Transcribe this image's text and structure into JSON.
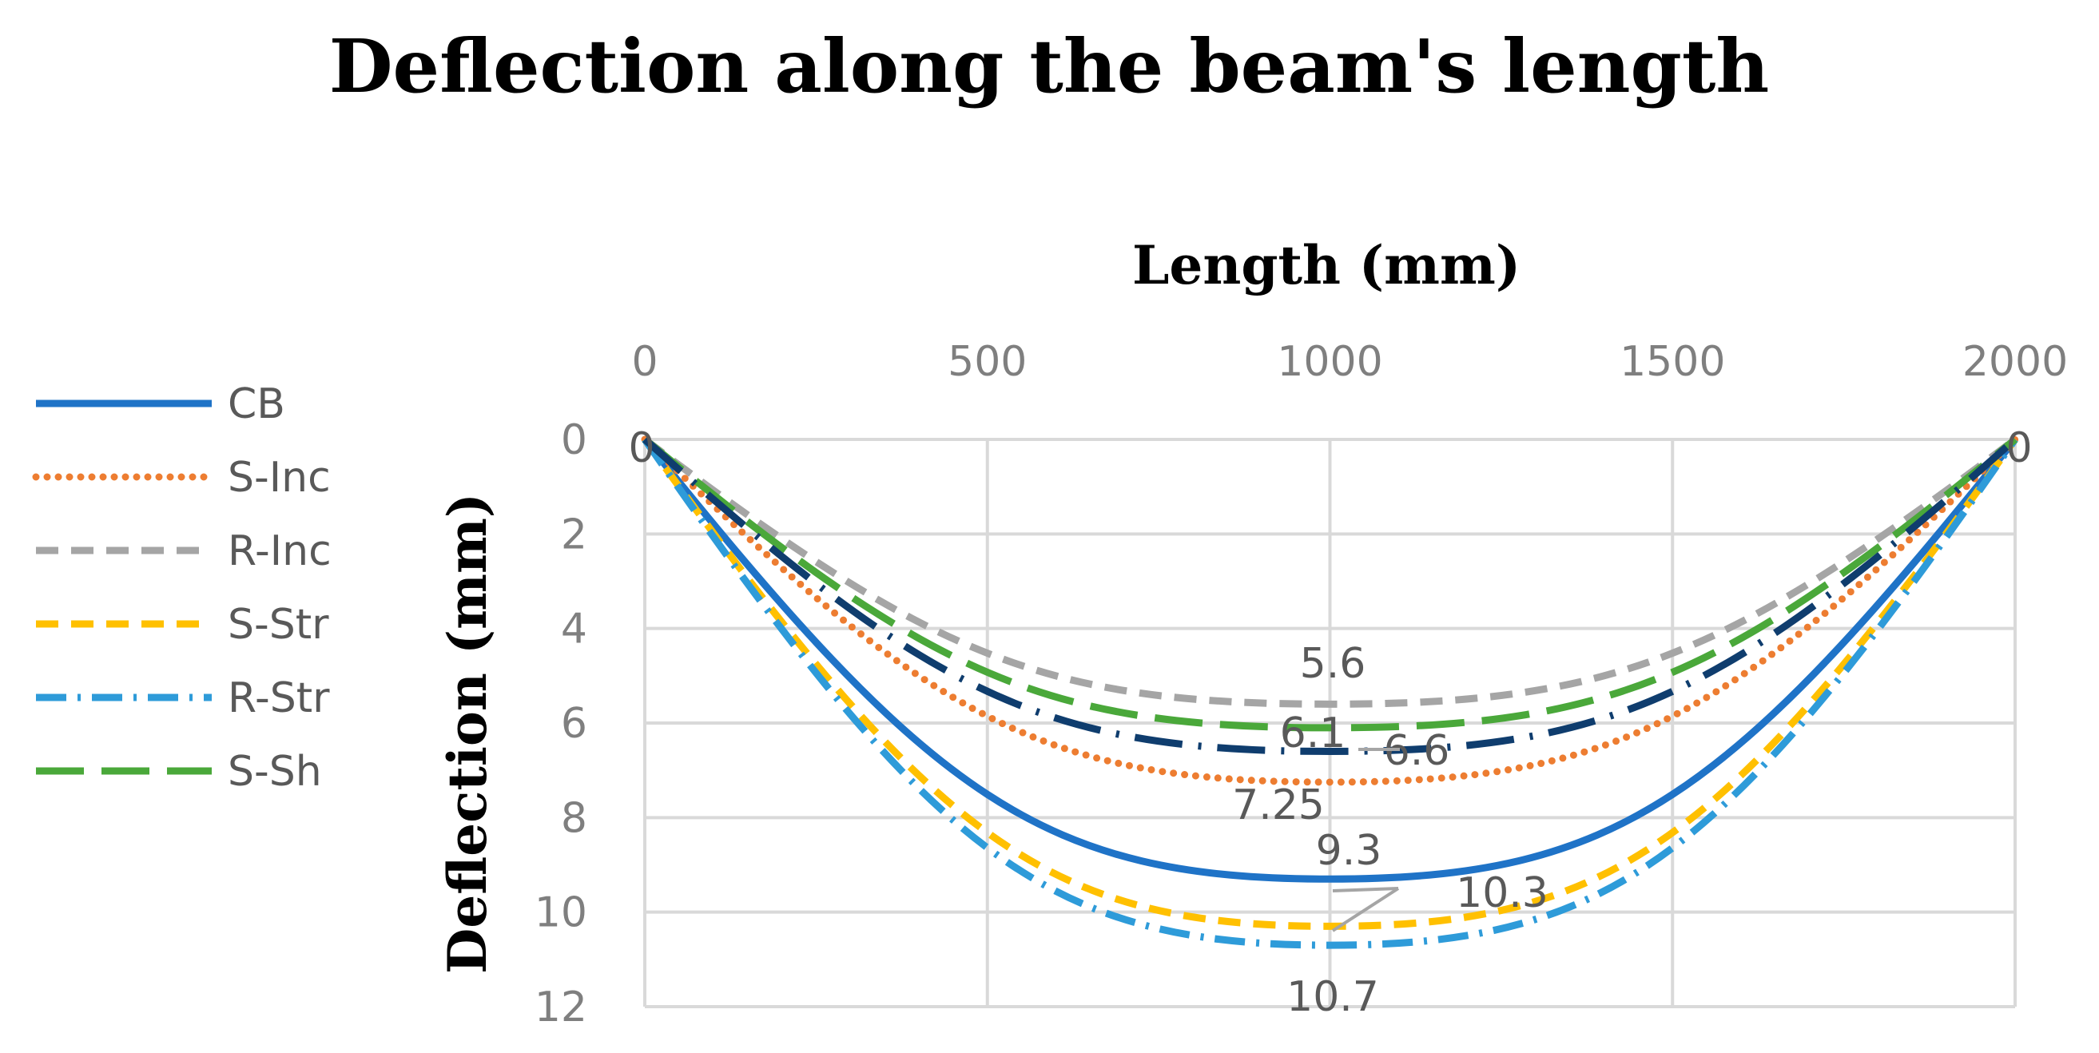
{
  "chart_data": {
    "type": "line",
    "title": "Deflection along the beam's length",
    "xlabel": "Length (mm)",
    "ylabel": "Deflection (mm)",
    "xlim": [
      0,
      2000
    ],
    "ylim": [
      0,
      12
    ],
    "x_ticks": [
      "0",
      "500",
      "1000",
      "1500",
      "2000"
    ],
    "y_ticks": [
      "0",
      "2",
      "4",
      "6",
      "8",
      "10",
      "12"
    ],
    "x_axis_position": "top",
    "y_axis_inverted": true,
    "grid": true,
    "legend_position": "left",
    "x": [
      0,
      1000,
      2000
    ],
    "series": [
      {
        "name": "CB",
        "color": "#1f73c7",
        "style": "solid",
        "values": [
          0,
          9.3,
          0
        ]
      },
      {
        "name": "S-Inc",
        "color": "#ed7d31",
        "style": "dotted",
        "values": [
          0,
          7.25,
          0
        ]
      },
      {
        "name": "R-Inc",
        "color": "#a5a5a5",
        "style": "dashed",
        "values": [
          0,
          5.6,
          0
        ]
      },
      {
        "name": "S-Str",
        "color": "#ffc000",
        "style": "dashed",
        "values": [
          0,
          10.3,
          0
        ]
      },
      {
        "name": "R-Str",
        "color": "#2e9bd9",
        "style": "dash-dot",
        "values": [
          0,
          10.7,
          0
        ]
      },
      {
        "name": "S-Sh",
        "color": "#4aa83a",
        "style": "long-dash",
        "values": [
          0,
          6.1,
          0
        ]
      },
      {
        "name": "",
        "color": "#0f3d6e",
        "style": "long-dash-dot",
        "values": [
          0,
          6.6,
          0
        ]
      }
    ],
    "data_labels": [
      "0",
      "5.6",
      "6.1",
      "6.6",
      "7.25",
      "9.3",
      "10.3",
      "10.7"
    ]
  }
}
